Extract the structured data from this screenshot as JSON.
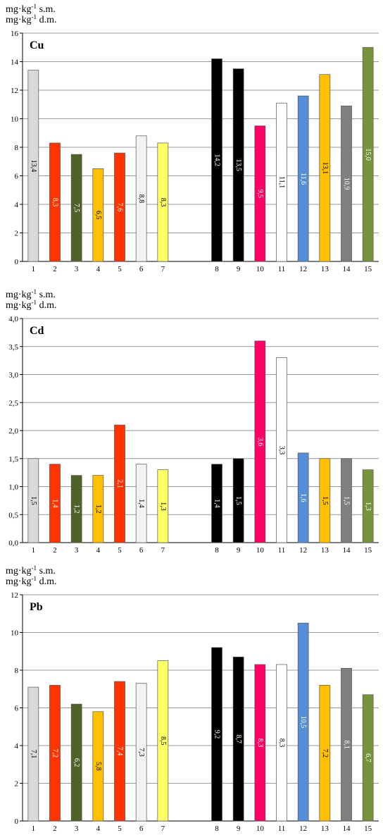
{
  "units": {
    "line1": {
      "prefix": "mg·kg",
      "exponent": "-1",
      "suffix": " s.m."
    },
    "line2": {
      "prefix": "mg·kg",
      "exponent": "-1",
      "suffix": " d.m."
    }
  },
  "colors": [
    "#d9d9d9",
    "#ff3300",
    "#4f6228",
    "#ffc000",
    "#ff3300",
    "#f2f2f2",
    "#ffff66",
    "#000000",
    "#000000",
    "#ff0066",
    "#ffffff",
    "#558ed5",
    "#ffc000",
    "#7f7f7f",
    "#77933c"
  ],
  "chart_data": [
    {
      "type": "bar",
      "title": "Cu",
      "categories": [
        "1",
        "2",
        "3",
        "4",
        "5",
        "6",
        "7",
        "8",
        "9",
        "10",
        "11",
        "12",
        "13",
        "14",
        "15"
      ],
      "values": [
        13.4,
        8.3,
        7.5,
        6.5,
        7.6,
        8.8,
        8.3,
        14.2,
        13.5,
        9.5,
        11.1,
        11.6,
        13.1,
        10.9,
        15.0
      ],
      "data_labels": [
        "13,4",
        "8,3",
        "7,5",
        "6,5",
        "7,6",
        "8,8",
        "8,3",
        "14,2",
        "13,5",
        "9,5",
        "11,1",
        "11,6",
        "13,1",
        "10,9",
        "15,0"
      ],
      "ylim": [
        0,
        16
      ],
      "yticks": [
        0,
        2,
        4,
        6,
        8,
        10,
        12,
        14,
        16
      ],
      "ytick_labels": [
        "0",
        "2",
        "4",
        "6",
        "8",
        "10",
        "12",
        "14",
        "16"
      ],
      "grid": true
    },
    {
      "type": "bar",
      "title": "Cd",
      "categories": [
        "1",
        "2",
        "3",
        "4",
        "5",
        "6",
        "7",
        "8",
        "9",
        "10",
        "11",
        "12",
        "13",
        "14",
        "15"
      ],
      "values": [
        1.5,
        1.4,
        1.2,
        1.2,
        2.1,
        1.4,
        1.3,
        1.4,
        1.5,
        3.6,
        3.3,
        1.6,
        1.5,
        1.5,
        1.3
      ],
      "data_labels": [
        "1,5",
        "1,4",
        "1,2",
        "1,2",
        "2,1",
        "1,4",
        "1,3",
        "1,4",
        "1,5",
        "3,6",
        "3,3",
        "1,6",
        "1,5",
        "1,5",
        "1,3"
      ],
      "ylim": [
        0,
        4
      ],
      "yticks": [
        0,
        0.5,
        1,
        1.5,
        2,
        2.5,
        3,
        3.5,
        4
      ],
      "ytick_labels": [
        "0,0",
        "0,5",
        "1,0",
        "1,5",
        "2,0",
        "2,5",
        "3,0",
        "3,5",
        "4,0"
      ],
      "grid": true
    },
    {
      "type": "bar",
      "title": "Pb",
      "categories": [
        "1",
        "2",
        "3",
        "4",
        "5",
        "6",
        "7",
        "8",
        "9",
        "10",
        "11",
        "12",
        "13",
        "14",
        "15"
      ],
      "values": [
        7.1,
        7.2,
        6.2,
        5.8,
        7.4,
        7.3,
        8.5,
        9.2,
        8.7,
        8.3,
        8.3,
        10.5,
        7.2,
        8.1,
        6.7
      ],
      "data_labels": [
        "7,1",
        "7,2",
        "6,2",
        "5,8",
        "7,4",
        "7,3",
        "8,5",
        "9,2",
        "8,7",
        "8,3",
        "8,3",
        "10,5",
        "7,2",
        "8,1",
        "6,7"
      ],
      "ylim": [
        0,
        12
      ],
      "yticks": [
        0,
        2,
        4,
        6,
        8,
        10,
        12
      ],
      "ytick_labels": [
        "0",
        "2",
        "4",
        "6",
        "8",
        "10",
        "12"
      ],
      "grid": true
    }
  ]
}
